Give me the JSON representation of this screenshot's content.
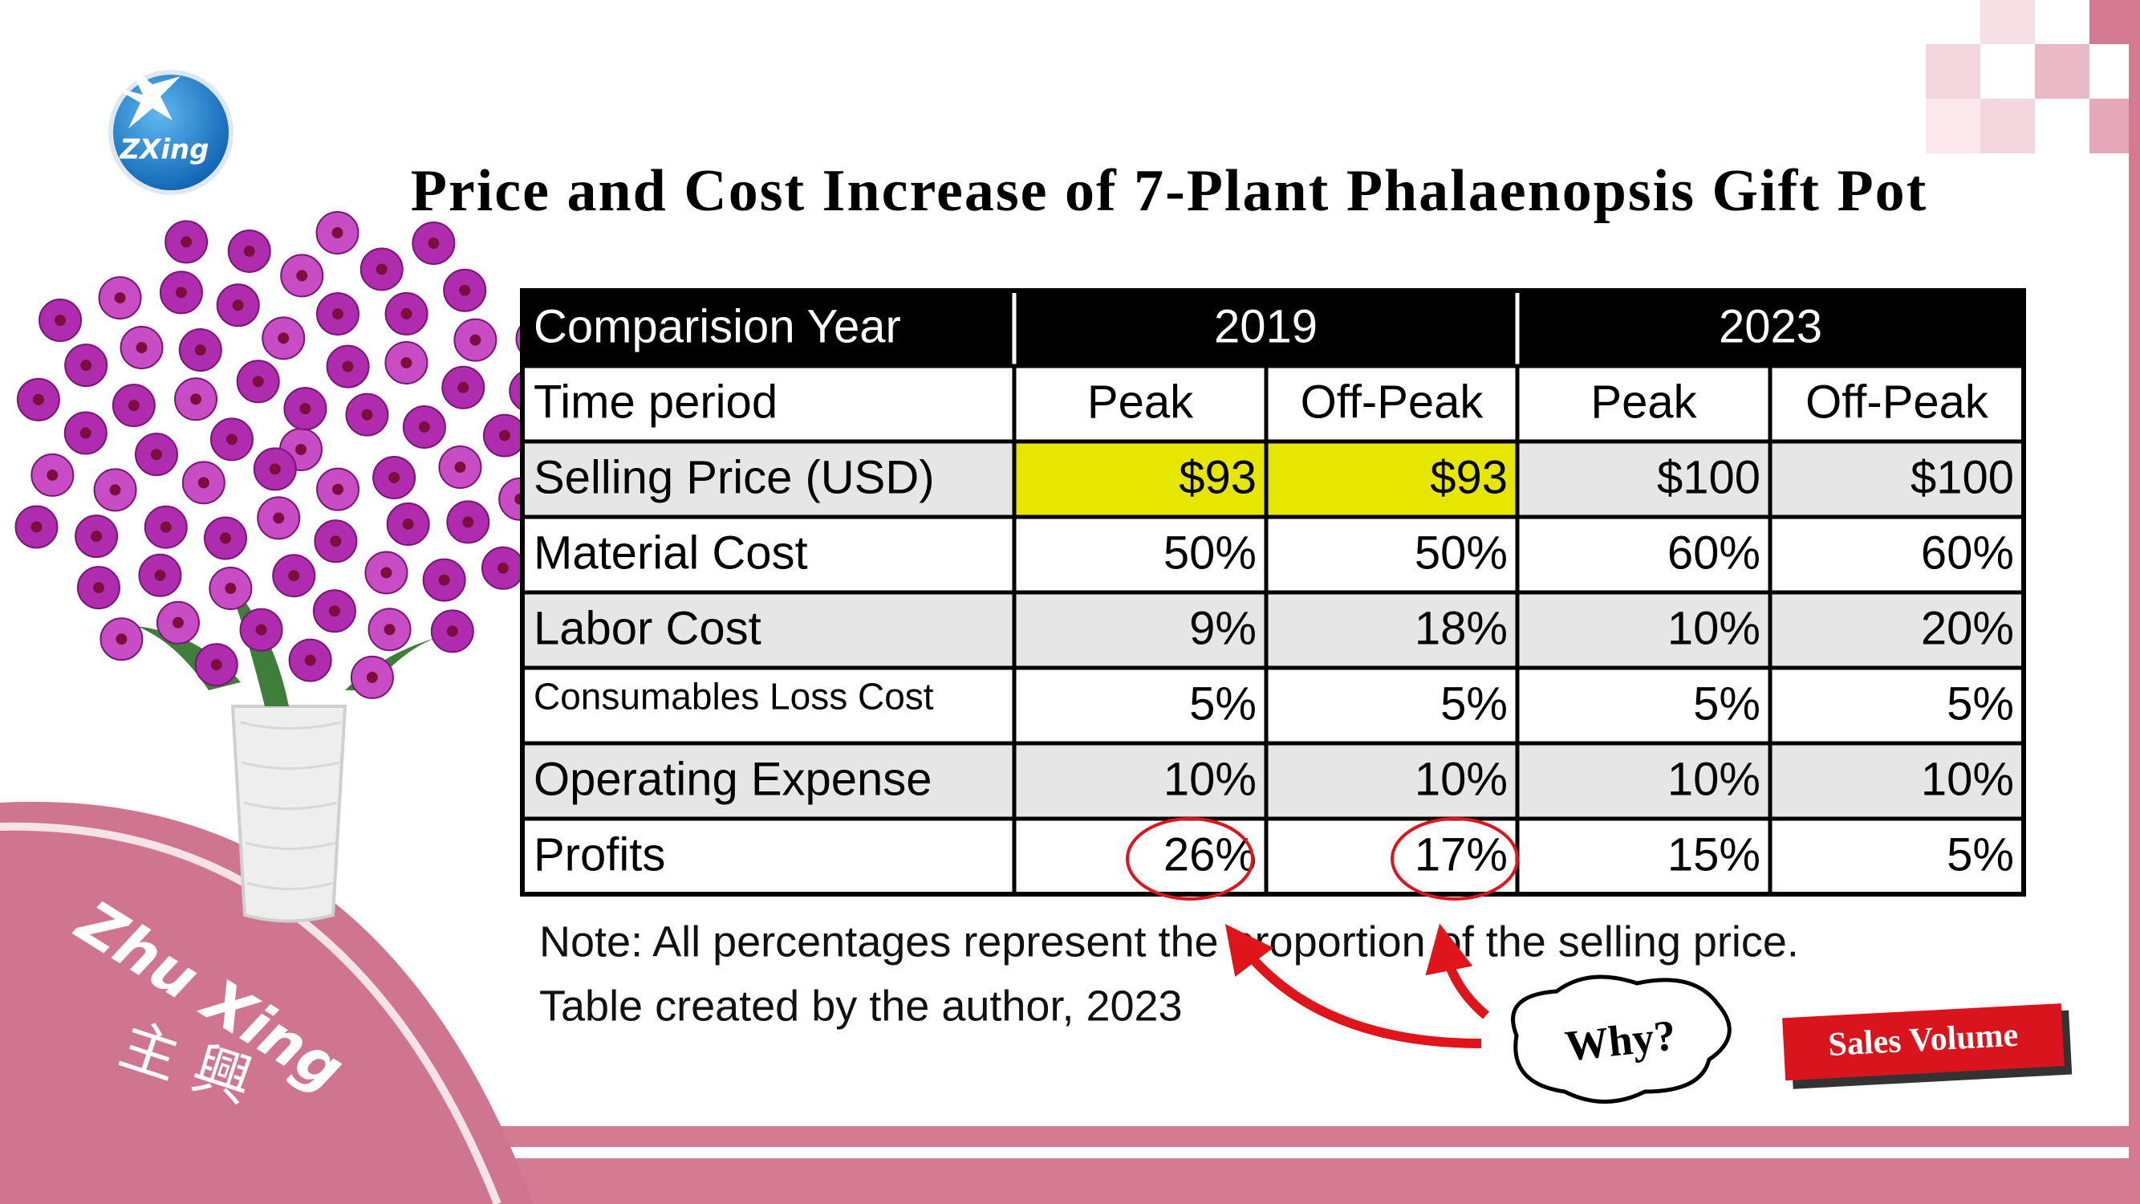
{
  "logo": "ZXing",
  "title": "Price and Cost Increase of 7-Plant Phalaenopsis Gift Pot",
  "table": {
    "header": [
      "Comparision Year",
      "2019",
      "2023"
    ],
    "rows": [
      [
        "Time period",
        "Peak",
        "Off-Peak",
        "Peak",
        "Off-Peak"
      ],
      [
        "Selling Price (USD)",
        "$93",
        "$93",
        "$100",
        "$100"
      ],
      [
        "Material Cost",
        "50%",
        "50%",
        "60%",
        "60%"
      ],
      [
        "Labor Cost",
        "9%",
        "18%",
        "10%",
        "20%"
      ],
      [
        "Consumables Loss Cost",
        "5%",
        "5%",
        "5%",
        "5%"
      ],
      [
        "Operating Expense",
        "10%",
        "10%",
        "10%",
        "10%"
      ],
      [
        "Profits",
        "26%",
        "17%",
        "15%",
        "5%"
      ]
    ]
  },
  "note": [
    "Note: All percentages represent the proportion of the selling price.",
    "Table created by the author, 2023"
  ],
  "callout": "Why?",
  "badge": "Sales Volume",
  "brand": "Zhu Xing",
  "brand_cn": "主 興"
}
